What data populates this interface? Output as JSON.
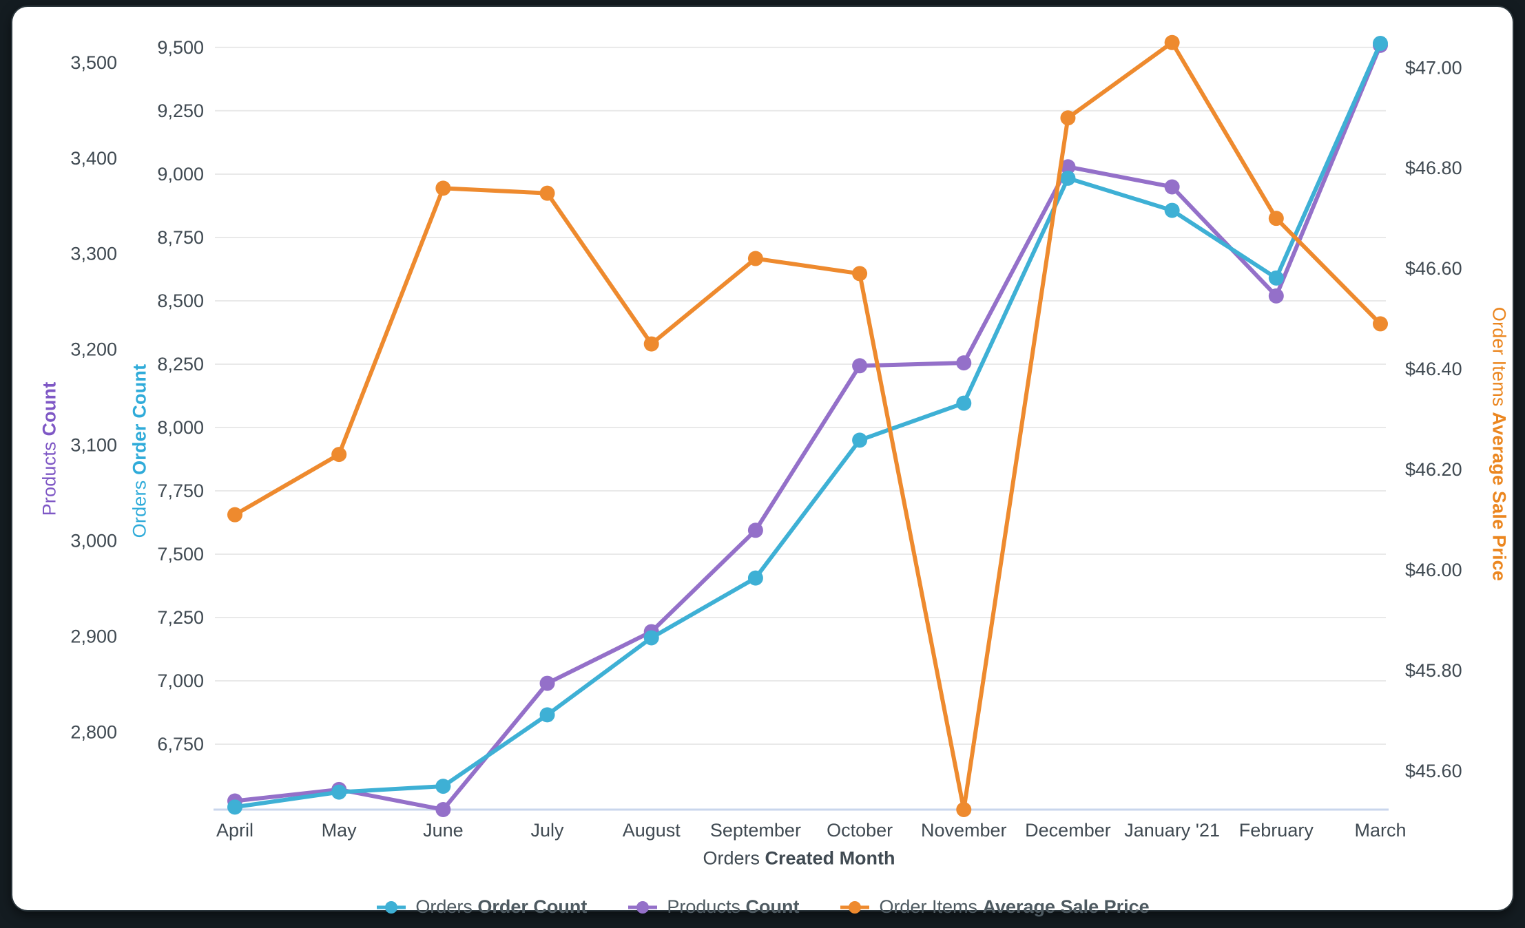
{
  "window": {
    "surround_color": "#141c21",
    "card_color": "#ffffff"
  },
  "chart_data": {
    "type": "line",
    "categories": [
      "April",
      "May",
      "June",
      "July",
      "August",
      "September",
      "October",
      "November",
      "December",
      "January '21",
      "February",
      "March"
    ],
    "series": [
      {
        "name_prefix": "Orders",
        "name_bold": "Order Count",
        "color": "#3EB0D5",
        "axis": "orders",
        "values": [
          6502,
          6561,
          6584,
          6866,
          7170,
          7406,
          7950,
          8096,
          8984,
          8857,
          8590,
          9516
        ]
      },
      {
        "name_prefix": "Products",
        "name_bold": "Count",
        "color": "#9470C9",
        "axis": "products",
        "values": [
          2728,
          2740,
          2719,
          2851,
          2905,
          3011,
          3183,
          3186,
          3391,
          3370,
          3256,
          3518
        ]
      },
      {
        "name_prefix": "Order Items",
        "name_bold": "Average Sale Price",
        "color": "#EE8A2E",
        "axis": "price",
        "values": [
          46.11,
          46.23,
          46.76,
          46.75,
          46.45,
          46.62,
          46.59,
          45.52,
          46.9,
          47.05,
          46.7,
          46.49
        ]
      }
    ],
    "axes": {
      "products": {
        "title_prefix": "Products",
        "title_bold": "Count",
        "color": "#7E57C5",
        "min": 2719,
        "max": 3533,
        "ticks": [
          2800,
          2900,
          3000,
          3100,
          3200,
          3300,
          3400,
          3500
        ],
        "format": "number"
      },
      "orders": {
        "title_prefix": "Orders",
        "title_bold": "Order Count",
        "color": "#2FABD9",
        "min": 6492,
        "max": 9565,
        "ticks": [
          6750,
          7000,
          7250,
          7500,
          7750,
          8000,
          8250,
          8500,
          8750,
          9000,
          9250,
          9500
        ],
        "format": "number",
        "gridlines": true
      },
      "price": {
        "title_prefix": "Order Items",
        "title_bold": "Average Sale Price",
        "color": "#EB861F",
        "min": 45.523,
        "max": 47.073,
        "ticks": [
          45.6,
          45.8,
          46.0,
          46.2,
          46.4,
          46.6,
          46.8,
          47.0
        ],
        "format": "currency"
      }
    },
    "x_axis": {
      "title_prefix": "Orders",
      "title_bold": "Created Month"
    },
    "style": {
      "gridline_color": "#E9E9E9",
      "baseline_color": "#C9D6EC",
      "tick_label_color": "#404A52"
    },
    "legend_position": "bottom"
  }
}
